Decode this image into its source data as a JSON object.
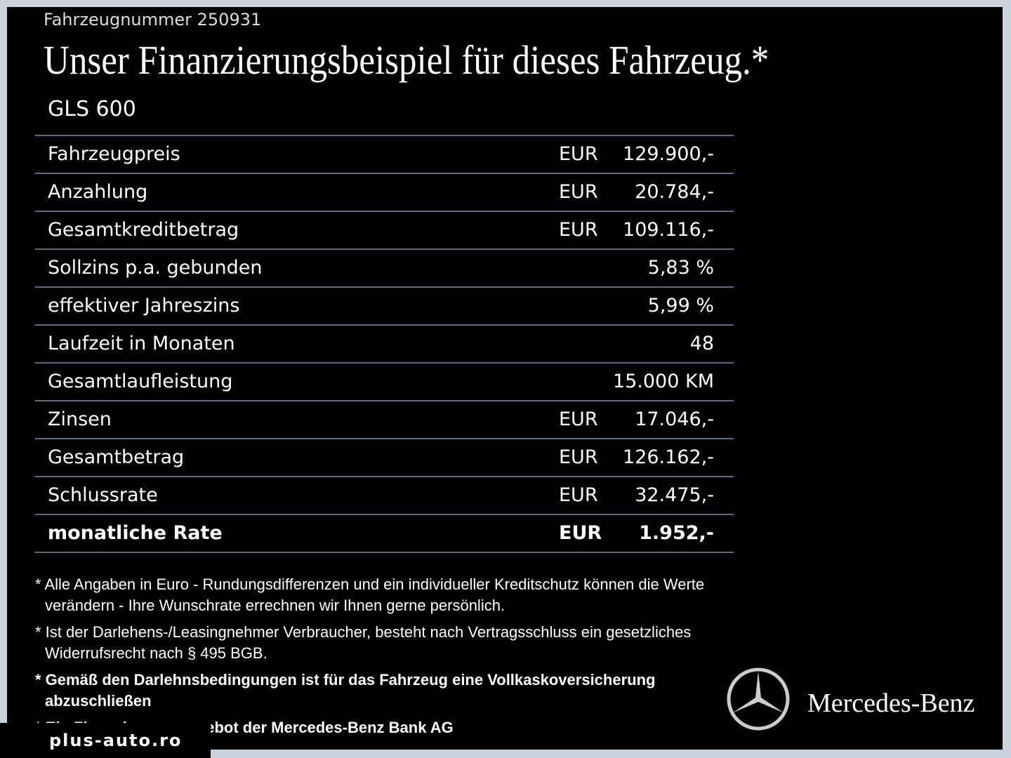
{
  "header": {
    "vehicle_number": "Fahrzeugnummer 250931",
    "title": "Unser Finanzierungsbeispiel für dieses Fahrzeug.*",
    "model": "GLS 600"
  },
  "table": {
    "rows": [
      [
        "Fahrzeugpreis",
        "EUR",
        "129.900,-"
      ],
      [
        "Anzahlung",
        "EUR",
        "20.784,-"
      ],
      [
        "Gesamtkreditbetrag",
        "EUR",
        "109.116,-"
      ],
      [
        "Sollzins p.a. gebunden",
        "",
        "5,83 %"
      ],
      [
        "effektiver Jahreszins",
        "",
        "5,99 %"
      ],
      [
        "Laufzeit in Monaten",
        "",
        "48"
      ],
      [
        "Gesamtlaufleistung",
        "",
        "15.000 KM"
      ],
      [
        "Zinsen",
        "EUR",
        "17.046,-"
      ],
      [
        "Gesamtbetrag",
        "EUR",
        "126.162,-"
      ],
      [
        "Schlussrate",
        "EUR",
        "32.475,-"
      ],
      [
        "monatliche Rate",
        "EUR",
        "1.952,-"
      ]
    ]
  },
  "notes": [
    "* Alle Angaben in Euro - Rundungsdifferenzen und ein individueller Kreditschutz können die Werte verändern - Ihre Wunschrate errechnen wir Ihnen gerne persönlich.",
    "* Ist der Darlehens-/Leasingnehmer Verbraucher, besteht nach Vertragsschluss ein gesetzliches Widerrufsrecht nach § 495 BGB.",
    "* Gemäß den Darlehnsbedingungen ist für das Fahrzeug eine Vollkaskoversicherung abzuschließen",
    "* Ein Finanzierungsangebot der Mercedes-Benz Bank AG"
  ],
  "brand": "Mercedes-Benz",
  "watermark": "plus-auto.ro"
}
